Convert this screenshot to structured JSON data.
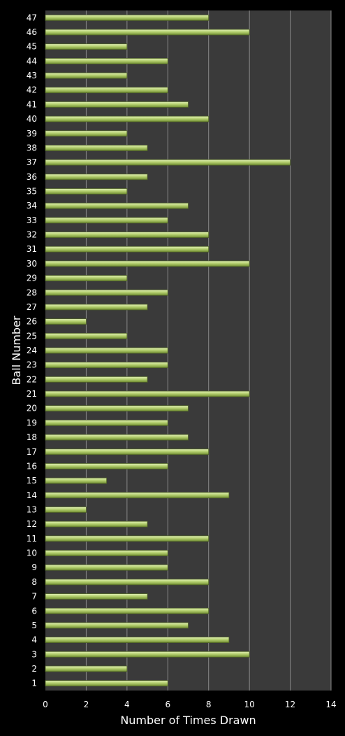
{
  "chart_data": {
    "type": "bar",
    "orientation": "horizontal",
    "title": "",
    "xlabel": "Number of Times Drawn",
    "ylabel": "Ball Number",
    "xlim": [
      0,
      14
    ],
    "xticks": [
      0,
      2,
      4,
      6,
      8,
      10,
      12,
      14
    ],
    "grid": "vertical",
    "legend": "none",
    "categories": [
      "1",
      "2",
      "3",
      "4",
      "5",
      "6",
      "7",
      "8",
      "9",
      "10",
      "11",
      "12",
      "13",
      "14",
      "15",
      "16",
      "17",
      "18",
      "19",
      "20",
      "21",
      "22",
      "23",
      "24",
      "25",
      "26",
      "27",
      "28",
      "29",
      "30",
      "31",
      "32",
      "33",
      "34",
      "35",
      "36",
      "37",
      "38",
      "39",
      "40",
      "41",
      "42",
      "43",
      "44",
      "45",
      "46",
      "47"
    ],
    "values": [
      6,
      4,
      10,
      9,
      7,
      8,
      5,
      8,
      6,
      6,
      8,
      5,
      2,
      9,
      3,
      6,
      8,
      7,
      6,
      7,
      10,
      5,
      6,
      6,
      4,
      2,
      5,
      6,
      4,
      10,
      8,
      8,
      6,
      7,
      4,
      5,
      12,
      5,
      4,
      8,
      7,
      6,
      4,
      6,
      4,
      10,
      8
    ],
    "colors": {
      "background": "#000000",
      "plot_background": "#3a3a3a",
      "gridline": "#8a8a8a",
      "bar_fill": "#9bbb59",
      "bar_highlight": "#e2f0b6",
      "bar_edge": "#4f6228",
      "text": "#ffffff"
    }
  }
}
